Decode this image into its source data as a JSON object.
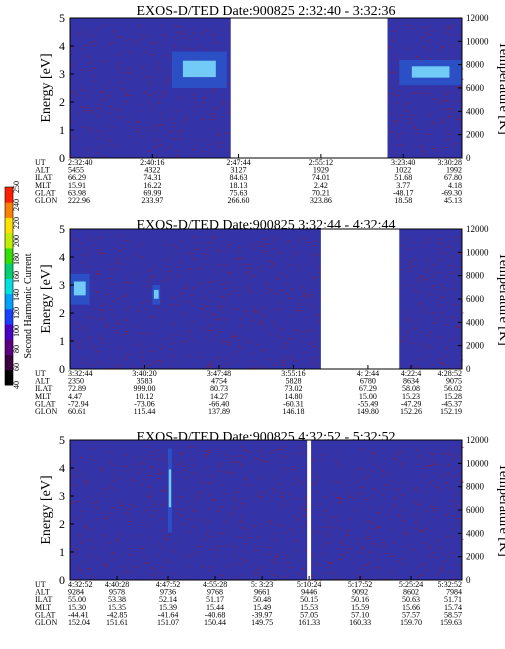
{
  "colors": {
    "plot_background": "#3434a8",
    "noise_speckle": "#a01818",
    "intense": "#7fe0ff",
    "gap": "#ffffff"
  },
  "colorbar": {
    "label": "Second Harmonic Current",
    "ticks": [
      "40",
      "60",
      "80",
      "100",
      "120",
      "140",
      "160",
      "180",
      "200",
      "220",
      "240",
      "250"
    ],
    "colors": [
      "#000000",
      "#3a0040",
      "#5b0080",
      "#4b00c8",
      "#1a40ff",
      "#00a0ff",
      "#00e0e0",
      "#00d070",
      "#30e000",
      "#c0f000",
      "#ffe000",
      "#ff8000",
      "#ff2000"
    ]
  },
  "chart_data": [
    {
      "type": "heatmap",
      "title": "EXOS-D/TED   Date:900825   2:32:40 - 3:32:36",
      "ylabel": "Energy [eV]",
      "ylabel_right": "Temperature [K]",
      "ylim": [
        0,
        5
      ],
      "ylim_right": [
        0,
        12000
      ],
      "yticks": [
        "0",
        "1",
        "2",
        "3",
        "4",
        "5"
      ],
      "yticks_right": [
        "0",
        "2000",
        "4000",
        "6000",
        "8000",
        "10000",
        "12000"
      ],
      "data_gaps": [
        [
          0.41,
          0.81
        ]
      ],
      "intense_regions": [
        {
          "x": [
            0.26,
            0.4
          ],
          "y": [
            2.5,
            3.8
          ]
        },
        {
          "x": [
            0.84,
            1.0
          ],
          "y": [
            2.6,
            3.5
          ]
        }
      ],
      "row_labels": [
        "UT",
        "ALT",
        "ILAT",
        "MLT",
        "GLAT",
        "GLON"
      ],
      "tick_columns": [
        {
          "x": 0.0,
          "values": [
            "2:32:40",
            "5455",
            "66.29",
            "15.91",
            "63.98",
            "222.96"
          ]
        },
        {
          "x": 0.21,
          "values": [
            "2:40:16",
            "4322",
            "74.31",
            "16.22",
            "69.99",
            "233.97"
          ]
        },
        {
          "x": 0.43,
          "values": [
            "2:47:44",
            "3127",
            "84.63",
            "18.13",
            "75.63",
            "266.60"
          ]
        },
        {
          "x": 0.64,
          "values": [
            "2:55:12",
            "1929",
            "74.01",
            "2.42",
            "70.21",
            "323.86"
          ]
        },
        {
          "x": 0.85,
          "values": [
            "3:23:40",
            "1022",
            "51.68",
            "3.77",
            "-48.17",
            "18.58"
          ]
        },
        {
          "x": 1.0,
          "values": [
            "3:30:28",
            "1992",
            "67.80",
            "4.18",
            "-69.30",
            "45.13"
          ]
        }
      ]
    },
    {
      "type": "heatmap",
      "title": "EXOS-D/TED   Date:900825   3:32:44 - 4:32:44",
      "ylabel": "Energy [eV]",
      "ylabel_right": "Temperature [K]",
      "ylim": [
        0,
        5
      ],
      "ylim_right": [
        0,
        12000
      ],
      "yticks": [
        "0",
        "1",
        "2",
        "3",
        "4",
        "5"
      ],
      "yticks_right": [
        "0",
        "2000",
        "4000",
        "6000",
        "8000",
        "10000",
        "12000"
      ],
      "data_gaps": [
        [
          0.64,
          0.84
        ]
      ],
      "intense_regions": [
        {
          "x": [
            0.0,
            0.05
          ],
          "y": [
            2.3,
            3.4
          ]
        },
        {
          "x": [
            0.21,
            0.23
          ],
          "y": [
            2.3,
            3.0
          ]
        }
      ],
      "row_labels": [
        "UT",
        "ALT",
        "ILAT",
        "MLT",
        "GLAT",
        "GLON"
      ],
      "tick_columns": [
        {
          "x": 0.0,
          "values": [
            "3:32:44",
            "2350",
            "72.89",
            "4.47",
            "-72.94",
            "60.61"
          ]
        },
        {
          "x": 0.19,
          "values": [
            "3:40:20",
            "3583",
            "999.00",
            "10.12",
            "-73.06",
            "115.44"
          ]
        },
        {
          "x": 0.38,
          "values": [
            "3:47:48",
            "4754",
            "80.73",
            "14.27",
            "-66.40",
            "137.89"
          ]
        },
        {
          "x": 0.57,
          "values": [
            "3:55:16",
            "5828",
            "73.02",
            "14.80",
            "-60.31",
            "146.18"
          ]
        },
        {
          "x": 0.76,
          "values": [
            "4: 2:44",
            "6780",
            "67.29",
            "15.00",
            "-55.49",
            "149.80"
          ]
        },
        {
          "x": 0.87,
          "values": [
            "4:22:4",
            "8634",
            "58.08",
            "15.23",
            "-47.29",
            "152.26"
          ]
        },
        {
          "x": 1.0,
          "values": [
            "4:28:52",
            "9075",
            "56.02",
            "15.28",
            "-45.37",
            "152.19"
          ]
        }
      ]
    },
    {
      "type": "heatmap",
      "title": "EXOS-D/TED   Date:900825   4:32:52 - 5:32:52",
      "ylabel": "Energy [eV]",
      "ylabel_right": "Temperature [K]",
      "ylim": [
        0,
        5
      ],
      "ylim_right": [
        0,
        12000
      ],
      "yticks": [
        "0",
        "1",
        "2",
        "3",
        "4",
        "5"
      ],
      "yticks_right": [
        "0",
        "2000",
        "4000",
        "6000",
        "8000",
        "10000",
        "12000"
      ],
      "data_gaps": [
        [
          0.605,
          0.615
        ]
      ],
      "intense_regions": [
        {
          "x": [
            0.25,
            0.26
          ],
          "y": [
            1.7,
            4.7
          ]
        }
      ],
      "row_labels": [
        "UT",
        "ALT",
        "ILAT",
        "MLT",
        "GLAT",
        "GLON"
      ],
      "tick_columns": [
        {
          "x": 0.0,
          "values": [
            "4:32:52",
            "9284",
            "55.00",
            "15.30",
            "-44.41",
            "152.04"
          ]
        },
        {
          "x": 0.12,
          "values": [
            "4:40:28",
            "9578",
            "53.38",
            "15.35",
            "-42.85",
            "151.61"
          ]
        },
        {
          "x": 0.25,
          "values": [
            "4:47:52",
            "9736",
            "52.14",
            "15.39",
            "-41.64",
            "151.07"
          ]
        },
        {
          "x": 0.37,
          "values": [
            "4:55:28",
            "9768",
            "51.17",
            "15.44",
            "-40.68",
            "150.44"
          ]
        },
        {
          "x": 0.49,
          "values": [
            "5: 3:23",
            "9661",
            "50.48",
            "15.49",
            "-39.97",
            "149.75"
          ]
        },
        {
          "x": 0.61,
          "values": [
            "5:10:24",
            "9446",
            "50.15",
            "15.53",
            "57.05",
            "161.33"
          ]
        },
        {
          "x": 0.74,
          "values": [
            "5:17:52",
            "9092",
            "50.16",
            "15.59",
            "57.10",
            "160.33"
          ]
        },
        {
          "x": 0.87,
          "values": [
            "5:25:24",
            "8602",
            "50.63",
            "15.66",
            "57.57",
            "159.70"
          ]
        },
        {
          "x": 1.0,
          "values": [
            "5:32:52",
            "7984",
            "51.71",
            "15.74",
            "58.57",
            "159.63"
          ]
        }
      ]
    }
  ]
}
